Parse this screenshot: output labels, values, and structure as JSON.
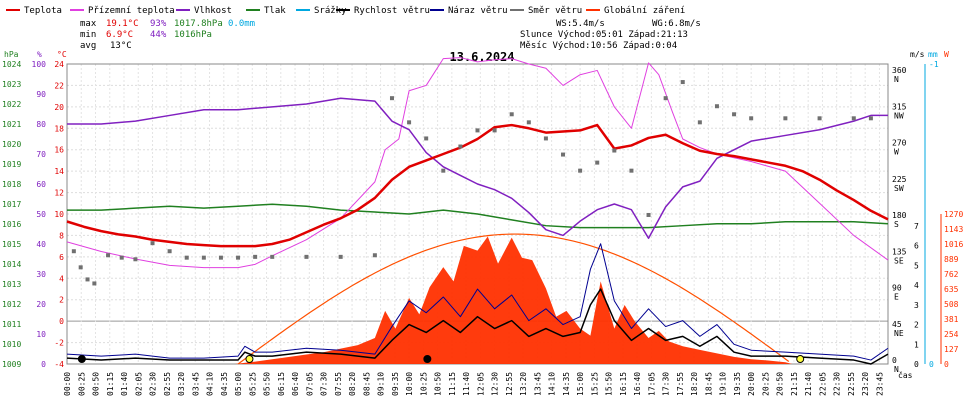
{
  "legend": [
    {
      "label": "Teplota",
      "color": "#e00000"
    },
    {
      "label": "Přízemní teplota",
      "color": "#e040e0"
    },
    {
      "label": "Vlhkost",
      "color": "#8020c0"
    },
    {
      "label": "Tlak",
      "color": "#208020"
    },
    {
      "label": "Srážky",
      "color": "#00a8e0"
    },
    {
      "label": "Rychlost větru",
      "color": "#000000"
    },
    {
      "label": "Náraz větru",
      "color": "#000090"
    },
    {
      "label": "Směr větru",
      "color": "#707070"
    },
    {
      "label": "Globální záření",
      "color": "#ff3000"
    }
  ],
  "stats": {
    "max_label": "max",
    "max_temp": "19.1°C",
    "max_hum": "93%",
    "max_press": "1017.8hPa",
    "max_rain": "0.0mm",
    "min_label": "min",
    "min_temp": "6.9°C",
    "min_hum": "44%",
    "min_press": "1016hPa",
    "avg_label": "avg",
    "avg_temp": "13°C",
    "ws": "WS:5.4m/s",
    "wg": "WG:6.8m/s",
    "sun": "Slunce Východ:05:01  Západ:21:13",
    "moon": "Měsíc  Východ:10:56  Západ:0:04"
  },
  "chart_data": {
    "type": "line",
    "title": "13.6.2024",
    "xlabel": "čas",
    "axes": {
      "hpa": {
        "label": "hPa",
        "ticks": [
          1009,
          1010,
          1011,
          1012,
          1013,
          1014,
          1015,
          1016,
          1017,
          1018,
          1019,
          1020,
          1021,
          1022,
          1023,
          1024
        ],
        "color": "#208020"
      },
      "pct": {
        "label": "%",
        "ticks": [
          0,
          10,
          20,
          30,
          40,
          50,
          60,
          70,
          80,
          90,
          100
        ],
        "color": "#8020c0"
      },
      "temp": {
        "label": "°C",
        "ticks": [
          -4,
          -2,
          0,
          2,
          4,
          6,
          8,
          10,
          12,
          14,
          16,
          18,
          20,
          22,
          24
        ],
        "color": "#e00000"
      },
      "dir": {
        "label": "",
        "ticks": [
          "N 360",
          "NW 315",
          "W 270",
          "SW 225",
          "S 180",
          "SE 135",
          "E 90",
          "NE 45",
          "N 0"
        ],
        "color": "#000000"
      },
      "ms": {
        "label": "m/s",
        "ticks": [
          0,
          1,
          2,
          3,
          4,
          5,
          6,
          7
        ],
        "color": "#000000"
      },
      "mm": {
        "label": "mm",
        "ticks": [
          0,
          1
        ],
        "color": "#00a8e0"
      },
      "wm2": {
        "label": "W",
        "ticks": [
          0,
          127,
          254,
          381,
          508,
          635,
          762,
          889,
          1016,
          1143,
          1270
        ],
        "color": "#ff3000"
      }
    },
    "x_labels": [
      "00:00",
      "00:25",
      "00:50",
      "01:15",
      "01:40",
      "02:05",
      "02:30",
      "02:55",
      "03:20",
      "03:45",
      "04:10",
      "04:35",
      "05:00",
      "05:25",
      "05:50",
      "06:15",
      "06:40",
      "07:05",
      "07:30",
      "07:55",
      "08:20",
      "08:45",
      "09:10",
      "09:35",
      "10:00",
      "10:25",
      "10:50",
      "11:15",
      "11:40",
      "12:05",
      "12:30",
      "12:55",
      "13:20",
      "13:45",
      "14:10",
      "14:35",
      "15:00",
      "15:25",
      "15:50",
      "16:15",
      "16:40",
      "17:05",
      "17:30",
      "17:55",
      "18:20",
      "18:45",
      "19:10",
      "19:35",
      "20:00",
      "20:25",
      "20:50",
      "21:15",
      "21:40",
      "22:05",
      "22:30",
      "22:55",
      "23:20",
      "23:45"
    ],
    "series": [
      {
        "name": "Teplota",
        "color": "#e00000",
        "x_hours": [
          0,
          0.5,
          1,
          1.5,
          2,
          2.5,
          3,
          3.5,
          4,
          4.5,
          5,
          5.5,
          6,
          6.5,
          7,
          7.5,
          8,
          8.5,
          9,
          9.5,
          10,
          10.5,
          11,
          11.5,
          12,
          12.5,
          13,
          13.5,
          14,
          14.5,
          15,
          15.5,
          16,
          16.5,
          17,
          17.5,
          18,
          18.5,
          19,
          19.5,
          20,
          20.5,
          21,
          21.5,
          22,
          22.5,
          23,
          23.5,
          24
        ],
        "values": [
          9.3,
          8.8,
          8.4,
          8.1,
          7.9,
          7.6,
          7.4,
          7.2,
          7.1,
          7.0,
          7.0,
          7.0,
          7.2,
          7.6,
          8.3,
          9.0,
          9.6,
          10.4,
          11.5,
          13.2,
          14.4,
          15.0,
          15.6,
          16.2,
          17.0,
          18.1,
          18.3,
          18.0,
          17.6,
          17.7,
          17.8,
          18.3,
          16.1,
          16.4,
          17.1,
          17.4,
          16.6,
          15.9,
          15.6,
          15.4,
          15.1,
          14.8,
          14.5,
          14.0,
          13.2,
          12.2,
          11.3,
          10.3,
          9.5
        ]
      },
      {
        "name": "Přízemní teplota",
        "color": "#e040e0",
        "x_hours": [
          0,
          1,
          2,
          3,
          4,
          5,
          5.5,
          6,
          7,
          8,
          9,
          9.3,
          9.7,
          10,
          10.5,
          11,
          11.5,
          12,
          12.5,
          13,
          13.5,
          14,
          14.5,
          15,
          15.5,
          16,
          16.5,
          17,
          17.3,
          17.7,
          18,
          18.5,
          19,
          20,
          21,
          22,
          23,
          24
        ],
        "values": [
          7.4,
          6.5,
          5.8,
          5.2,
          5.0,
          5.0,
          5.3,
          6.1,
          7.6,
          9.6,
          13.0,
          16.0,
          17.0,
          21.5,
          22.0,
          24.5,
          24.6,
          24.2,
          24.4,
          24.5,
          24.0,
          23.6,
          22.0,
          23.0,
          23.4,
          20.0,
          18.0,
          24.1,
          23.0,
          19.5,
          17.0,
          16.2,
          15.6,
          14.9,
          14.0,
          11.0,
          8.0,
          5.7
        ]
      },
      {
        "name": "Vlhkost",
        "color": "#8020c0",
        "x_hours": [
          0,
          1,
          2,
          3,
          4,
          4.5,
          5,
          6,
          7,
          8,
          9,
          9.5,
          10,
          10.5,
          11,
          11.5,
          12,
          12.5,
          13,
          13.5,
          14,
          14.5,
          15,
          15.5,
          16,
          16.5,
          17,
          17.5,
          18,
          18.5,
          19,
          20,
          21,
          22,
          23,
          23.5,
          24
        ],
        "values": [
          84,
          84,
          85,
          87,
          89,
          89,
          89,
          90,
          91,
          93,
          92,
          85,
          82,
          74,
          69,
          66,
          63,
          61,
          58,
          53,
          47,
          45,
          50,
          54,
          56,
          54,
          44,
          55,
          62,
          64,
          72,
          78,
          80,
          82,
          85,
          87,
          87
        ]
      },
      {
        "name": "Tlak",
        "color": "#208020",
        "x_hours": [
          0,
          1,
          2,
          3,
          4,
          5,
          6,
          7,
          8,
          9,
          10,
          11,
          12,
          13,
          14,
          15,
          16,
          17,
          18,
          19,
          20,
          21,
          22,
          23,
          24
        ],
        "values": [
          1016.9,
          1016.9,
          1017.0,
          1017.1,
          1017.0,
          1017.1,
          1017.2,
          1017.1,
          1016.9,
          1016.8,
          1016.7,
          1016.9,
          1016.7,
          1016.4,
          1016.1,
          1016.0,
          1016.0,
          1016.0,
          1016.1,
          1016.2,
          1016.2,
          1016.3,
          1016.3,
          1016.3,
          1016.2
        ]
      },
      {
        "name": "Rychlost větru",
        "color": "#000000",
        "x_hours": [
          0,
          1,
          2,
          3,
          4,
          5,
          5.2,
          5.5,
          6,
          7,
          8,
          9,
          9.5,
          10,
          10.5,
          11,
          11.5,
          12,
          12.5,
          13,
          13.5,
          14,
          14.5,
          15,
          15.3,
          15.6,
          16,
          16.5,
          17,
          17.5,
          18,
          18.5,
          19,
          19.5,
          20,
          21,
          22,
          23,
          23.5,
          24
        ],
        "values": [
          0.3,
          0.2,
          0.3,
          0.2,
          0.2,
          0.2,
          0.6,
          0.4,
          0.4,
          0.6,
          0.5,
          0.3,
          1.2,
          2.0,
          1.6,
          2.2,
          1.6,
          2.4,
          1.8,
          2.2,
          1.4,
          1.8,
          1.4,
          1.6,
          3.0,
          3.8,
          2.2,
          1.2,
          1.8,
          1.2,
          1.4,
          0.9,
          1.4,
          0.6,
          0.4,
          0.4,
          0.3,
          0.2,
          0.0,
          0.5
        ]
      },
      {
        "name": "Náraz větru",
        "color": "#000090",
        "x_hours": [
          0,
          1,
          2,
          3,
          4,
          5,
          5.2,
          5.5,
          6,
          7,
          8,
          9,
          9.5,
          10,
          10.5,
          11,
          11.5,
          12,
          12.5,
          13,
          13.5,
          14,
          14.5,
          15,
          15.3,
          15.6,
          16,
          16.5,
          17,
          17.5,
          18,
          18.5,
          19,
          19.5,
          20,
          21,
          22,
          23,
          23.5,
          24
        ],
        "values": [
          0.5,
          0.4,
          0.5,
          0.3,
          0.3,
          0.4,
          0.9,
          0.6,
          0.6,
          0.8,
          0.7,
          0.5,
          1.9,
          3.2,
          2.6,
          3.4,
          2.4,
          3.8,
          2.8,
          3.5,
          2.2,
          2.8,
          2.0,
          2.4,
          4.8,
          6.1,
          3.2,
          1.8,
          2.8,
          1.9,
          2.2,
          1.4,
          2.0,
          1.0,
          0.7,
          0.6,
          0.5,
          0.4,
          0.2,
          0.8
        ]
      },
      {
        "name": "Globální záření",
        "color": "#ff3000",
        "x_hours": [
          0,
          4.9,
          5.5,
          6,
          6.5,
          7,
          7.5,
          8,
          8.5,
          9,
          9.3,
          9.6,
          10,
          10.3,
          10.6,
          11,
          11.3,
          11.6,
          12,
          12.3,
          12.6,
          13,
          13.3,
          13.6,
          14,
          14.3,
          14.6,
          15,
          15.3,
          15.6,
          16,
          16.3,
          16.6,
          17,
          17.3,
          17.6,
          18,
          18.5,
          19,
          19.5,
          20,
          20.5,
          21,
          21.2,
          24
        ],
        "values": [
          0,
          0,
          20,
          40,
          60,
          80,
          100,
          130,
          160,
          220,
          450,
          300,
          560,
          420,
          650,
          820,
          700,
          1000,
          960,
          1080,
          850,
          1070,
          900,
          880,
          640,
          400,
          450,
          300,
          240,
          700,
          300,
          500,
          360,
          220,
          280,
          190,
          150,
          120,
          90,
          60,
          40,
          30,
          15,
          0,
          0
        ]
      },
      {
        "name": "Směr větru",
        "color": "#707070",
        "x_hours": [
          0.2,
          0.4,
          0.6,
          0.8,
          1.2,
          1.6,
          2.0,
          2.5,
          3.0,
          3.5,
          4.0,
          4.5,
          5.0,
          5.5,
          6.0,
          7.0,
          8.0,
          9.0,
          9.5,
          10.0,
          10.5,
          11.0,
          11.5,
          12.0,
          12.5,
          13.0,
          13.5,
          14.0,
          14.5,
          15.0,
          15.5,
          16.0,
          16.5,
          17.0,
          17.5,
          18.0,
          18.5,
          19.0,
          19.5,
          20.0,
          21.0,
          22.0,
          23.0,
          23.5
        ],
        "values": [
          140,
          120,
          105,
          100,
          135,
          132,
          130,
          150,
          140,
          132,
          132,
          132,
          132,
          133,
          133,
          133,
          133,
          135,
          330,
          300,
          280,
          240,
          270,
          290,
          290,
          310,
          300,
          280,
          260,
          240,
          250,
          265,
          240,
          185,
          330,
          350,
          300,
          320,
          310,
          305,
          305,
          305,
          305,
          305
        ]
      }
    ],
    "day_markers_hours": [
      0.2,
      5.1,
      10.3,
      21.2
    ]
  }
}
